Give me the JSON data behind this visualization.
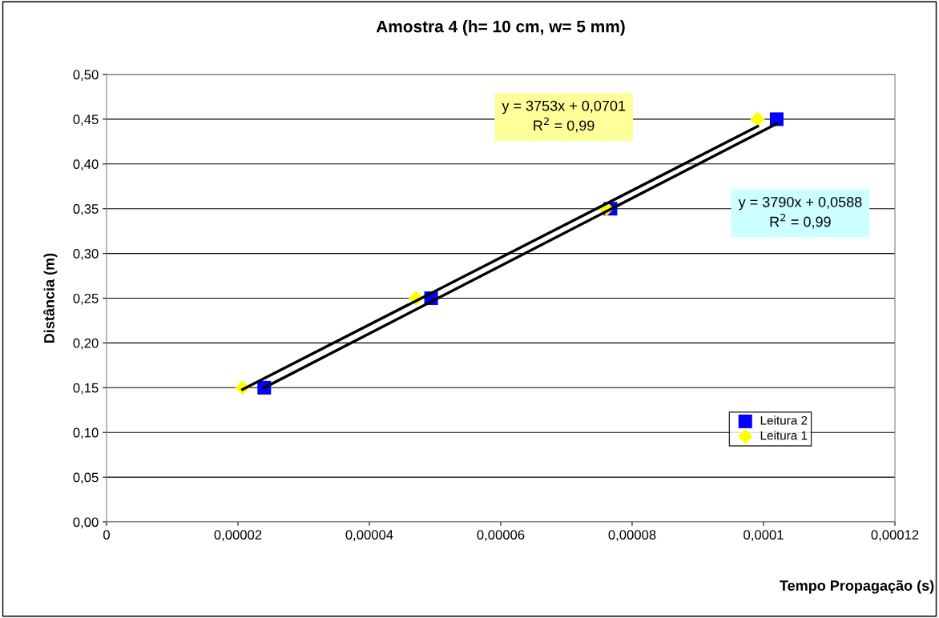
{
  "chart_data": {
    "type": "scatter",
    "title": "Amostra 4 (h= 10 cm, w= 5 mm)",
    "xlabel": "Tempo Propagação (s)",
    "ylabel": "Distância (m)",
    "series": [
      {
        "name": "Leitura 2",
        "color": "#0000ff",
        "marker": "square",
        "x": [
          2.4e-05,
          4.94e-05,
          7.67e-05,
          0.000102
        ],
        "values": [
          0.15,
          0.25,
          0.35,
          0.45
        ]
      },
      {
        "name": "Leitura 1",
        "color": "#ffff00",
        "marker": "diamond",
        "x": [
          2.07e-05,
          4.71e-05,
          7.61e-05,
          9.91e-05
        ],
        "values": [
          0.15,
          0.25,
          0.35,
          0.45
        ]
      },
      {
        "type": "line",
        "color": "#000000",
        "marker": "none",
        "x": [
          2.07e-05,
          9.91e-05
        ],
        "values": [
          0.148,
          0.442
        ]
      },
      {
        "type": "line",
        "color": "#000000",
        "marker": "none",
        "x": [
          2.4e-05,
          0.000102
        ],
        "values": [
          0.15,
          0.445
        ]
      }
    ],
    "annotations": [
      "y = 3753x + 0,0701\nR$^{2}$ = 0,99",
      "y = 3790x + 0,0588\nR$^{2}$ = 0,99"
    ],
    "xlim": [
      0,
      0.00012
    ],
    "ylim": [
      0,
      0.5
    ],
    "xticks": [
      0,
      {
        "value": 2e-05,
        "label": "0,00002"
      },
      {
        "value": 4e-05,
        "label": "0,00004"
      },
      {
        "value": 6e-05,
        "label": "0,00006"
      },
      {
        "value": 8e-05,
        "label": "0,00008"
      },
      {
        "value": 0.0001,
        "label": "0,0001"
      },
      {
        "value": 0.00012,
        "label": "0,00012"
      }
    ],
    "yticks": [
      {
        "value": 0,
        "label": "0,00"
      },
      {
        "value": 0.05,
        "label": "0,05"
      },
      {
        "value": 0.1,
        "label": "0,10"
      },
      {
        "value": 0.15,
        "label": "0,15"
      },
      {
        "value": 0.2,
        "label": "0,20"
      },
      {
        "value": 0.25,
        "label": "0,25"
      },
      {
        "value": 0.3,
        "label": "0,30"
      },
      {
        "value": 0.35,
        "label": "0,35"
      },
      {
        "value": 0.4,
        "label": "0,40"
      },
      {
        "value": 0.45,
        "label": "0,45"
      },
      {
        "value": 0.5,
        "label": "0,50"
      }
    ],
    "grid": "y",
    "legend": "bottom right"
  }
}
